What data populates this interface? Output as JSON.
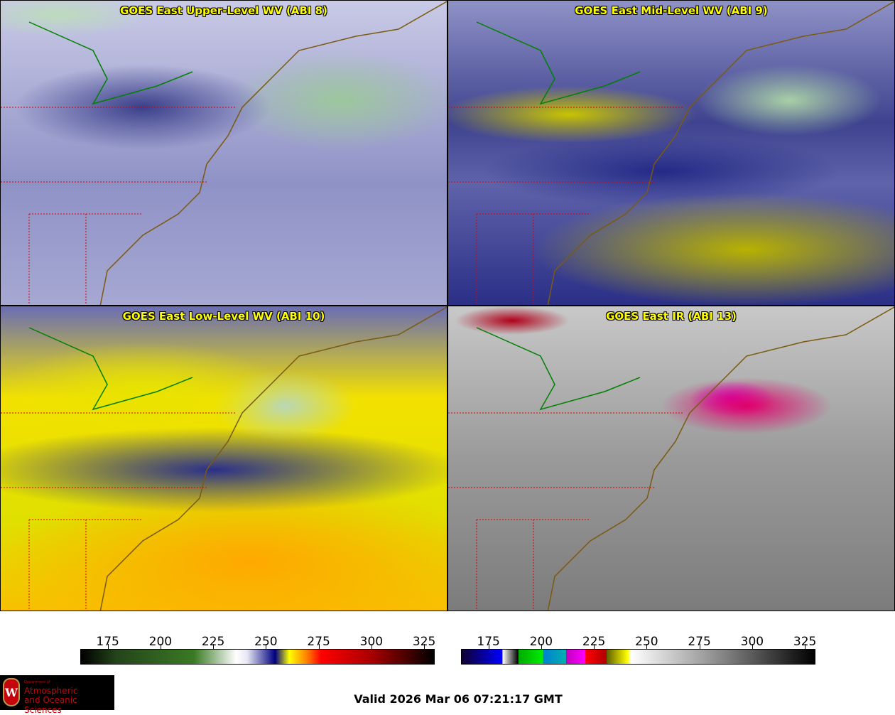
{
  "panels": [
    {
      "title": "GOES East Upper-Level WV (ABI 8)"
    },
    {
      "title": "GOES East Mid-Level WV (ABI 9)"
    },
    {
      "title": "GOES East Low-Level WV (ABI 10)"
    },
    {
      "title": "GOES East IR (ABI 13)"
    }
  ],
  "colorbars": [
    {
      "name": "water-vapor",
      "ticks": [
        "175",
        "200",
        "225",
        "250",
        "275",
        "300",
        "325"
      ],
      "range": [
        162,
        330
      ]
    },
    {
      "name": "infrared",
      "ticks": [
        "175",
        "200",
        "225",
        "250",
        "275",
        "300",
        "325"
      ],
      "range": [
        162,
        330
      ]
    }
  ],
  "logo": {
    "line1": "Department of",
    "line2": "Atmospheric",
    "line3": "and Oceanic Sciences",
    "seal": "W"
  },
  "valid": "Valid 2026 Mar 06 07:21:17 GMT",
  "colors": {
    "title": "#ffff00",
    "coast": "#7a5a10",
    "border": "#e00000",
    "lake": "#008000"
  }
}
